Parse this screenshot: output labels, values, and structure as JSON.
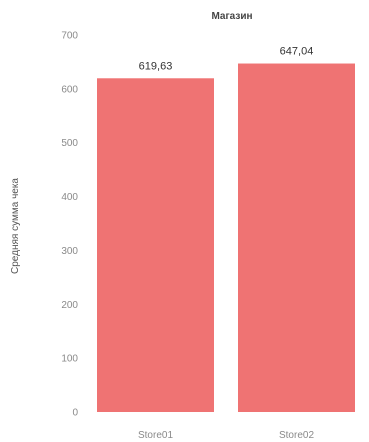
{
  "chart_data": {
    "type": "bar",
    "header": "Магазин",
    "categories": [
      "Store01",
      "Store02"
    ],
    "values": [
      619.63,
      647.04
    ],
    "value_labels": [
      "619,63",
      "647,04"
    ],
    "ylabel": "Средняя сумма чека",
    "xlabel": "",
    "ylim": [
      0,
      700
    ],
    "yticks": [
      "0",
      "100",
      "200",
      "300",
      "400",
      "500",
      "600",
      "700"
    ],
    "grid": false,
    "legend": "none",
    "bar_color": "#ef7373"
  }
}
